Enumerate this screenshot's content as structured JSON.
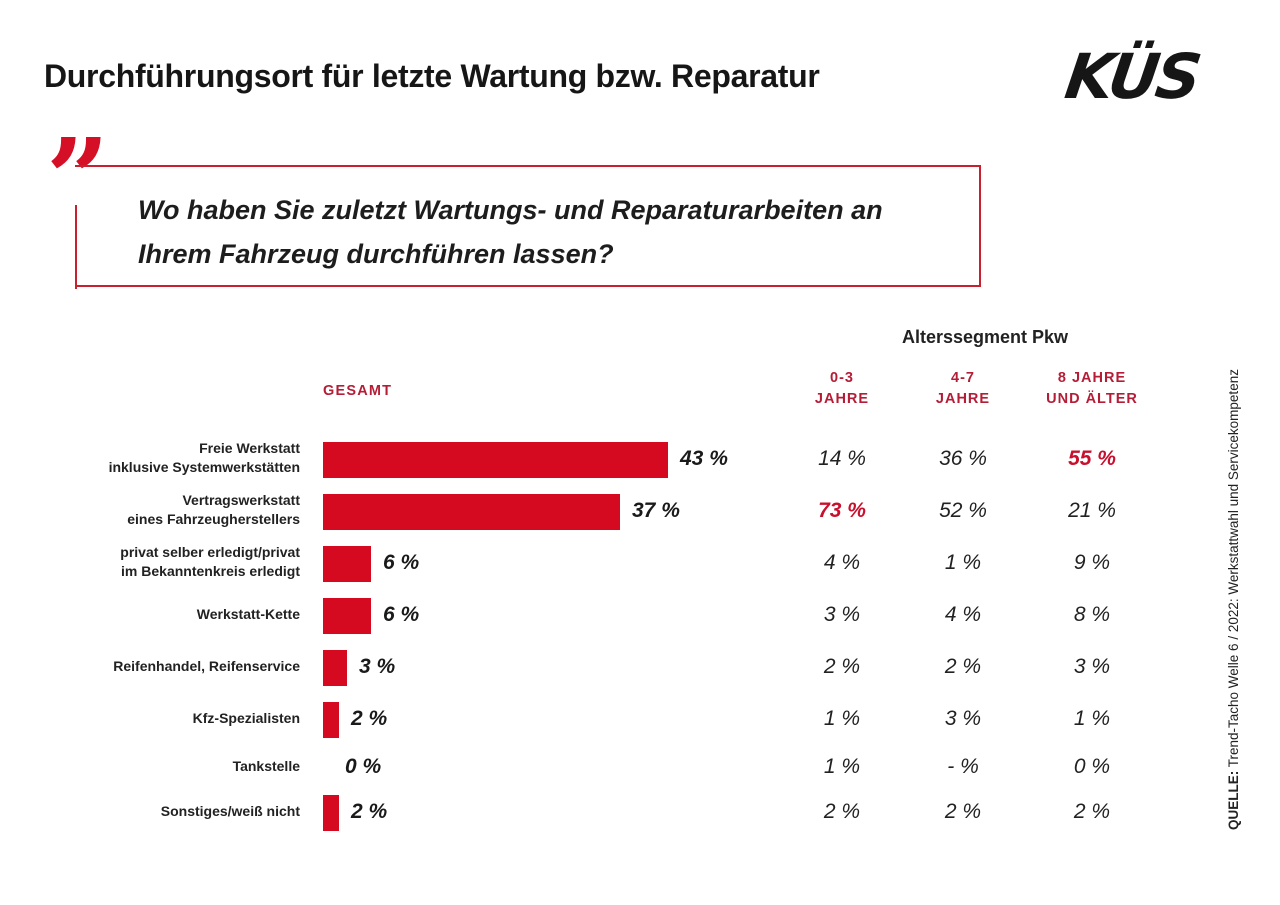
{
  "header": {
    "title": "Durchführungsort für letzte Wartung bzw. Reparatur",
    "logo": "KÜS"
  },
  "question": {
    "quote_icon": "closing-quote-icon",
    "text": "Wo haben Sie zuletzt Wartungs- und Reparaturarbeiten an Ihrem Fahrzeug durchführen lassen?"
  },
  "colors": {
    "accent": "#d50a20",
    "header_red": "#b51d36",
    "text": "#1a1a1a"
  },
  "chart_data": {
    "type": "bar",
    "orientation": "horizontal",
    "title": "Durchführungsort für letzte Wartung bzw. Reparatur",
    "series_label": "GESAMT",
    "categories": [
      "Freie Werkstatt inklusive Systemwerkstätten",
      "Vertragswerkstatt eines Fahrzeugherstellers",
      "privat selber erledigt/privat im Bekanntenkreis erledigt",
      "Werkstatt-Kette",
      "Reifenhandel, Reifenservice",
      "Kfz-Spezialisten",
      "Tankstelle",
      "Sonstiges/weiß nicht"
    ],
    "category_lines": [
      [
        "Freie Werkstatt",
        "inklusive Systemwerkstätten"
      ],
      [
        "Vertragswerkstatt",
        "eines Fahrzeugherstellers"
      ],
      [
        "privat selber erledigt/privat",
        "im Bekanntenkreis erledigt"
      ],
      [
        "Werkstatt-Kette"
      ],
      [
        "Reifenhandel, Reifenservice"
      ],
      [
        "Kfz-Spezialisten"
      ],
      [
        "Tankstelle"
      ],
      [
        "Sonstiges/weiß nicht"
      ]
    ],
    "values": [
      43,
      37,
      6,
      6,
      3,
      2,
      0,
      2
    ],
    "value_labels": [
      "43 %",
      "37 %",
      "6 %",
      "6 %",
      "3 %",
      "2 %",
      "0 %",
      "2 %"
    ],
    "xlim": [
      0,
      43
    ],
    "unit": "%",
    "table": {
      "group_title": "Alterssegment Pkw",
      "columns": [
        {
          "header": [
            "0-3",
            "JAHRE"
          ],
          "values": [
            "14 %",
            "73 %",
            "4 %",
            "3 %",
            "2 %",
            "1 %",
            "1 %",
            "2 %"
          ],
          "highlight_row": 1
        },
        {
          "header": [
            "4-7",
            "JAHRE"
          ],
          "values": [
            "36 %",
            "52 %",
            "1 %",
            "4 %",
            "2 %",
            "3 %",
            "- %",
            "2 %"
          ],
          "highlight_row": null
        },
        {
          "header": [
            "8 JAHRE",
            "UND ÄLTER"
          ],
          "values": [
            "55 %",
            "21 %",
            "9 %",
            "8 %",
            "3 %",
            "1 %",
            "0 %",
            "2 %"
          ],
          "highlight_row": 0
        }
      ]
    }
  },
  "source": {
    "label": "QUELLE:",
    "text": " Trend-Tacho Welle 6 / 2022: Werkstattwahl und Servicekompetenz"
  }
}
